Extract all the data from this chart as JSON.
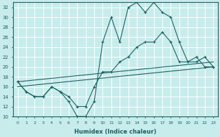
{
  "xlabel": "Humidex (Indice chaleur)",
  "bg_color": "#c8ecec",
  "grid_color": "#ffffff",
  "line_color": "#1a6060",
  "xlim": [
    -0.5,
    23.5
  ],
  "ylim": [
    10,
    33
  ],
  "yticks": [
    10,
    12,
    14,
    16,
    18,
    20,
    22,
    24,
    26,
    28,
    30,
    32
  ],
  "xticks": [
    0,
    1,
    2,
    3,
    4,
    5,
    6,
    7,
    8,
    9,
    10,
    11,
    12,
    13,
    14,
    15,
    16,
    17,
    18,
    19,
    20,
    21,
    22,
    23
  ],
  "line1_x": [
    0,
    1,
    2,
    3,
    4,
    5,
    6,
    7,
    8,
    9,
    10,
    11,
    12,
    13,
    14,
    15,
    16,
    17,
    18,
    19,
    20,
    21,
    22,
    23
  ],
  "line1_y": [
    17,
    15,
    14,
    14,
    16,
    15,
    13,
    10,
    10,
    13,
    25,
    30,
    25,
    32,
    33,
    31,
    33,
    31,
    30,
    25,
    21,
    21,
    22,
    20
  ],
  "line2_x": [
    0,
    1,
    2,
    3,
    4,
    5,
    6,
    7,
    8,
    9,
    10,
    11,
    12,
    13,
    14,
    15,
    16,
    17,
    18,
    19,
    20,
    21,
    22,
    23
  ],
  "line2_y": [
    17,
    15,
    14,
    14,
    16,
    15,
    14,
    12,
    12,
    16,
    19,
    19,
    21,
    22,
    24,
    25,
    25,
    27,
    25,
    21,
    21,
    22,
    20,
    20
  ],
  "line3_x": [
    0,
    23
  ],
  "line3_y": [
    17,
    21
  ],
  "line4_x": [
    0,
    23
  ],
  "line4_y": [
    16,
    20
  ]
}
